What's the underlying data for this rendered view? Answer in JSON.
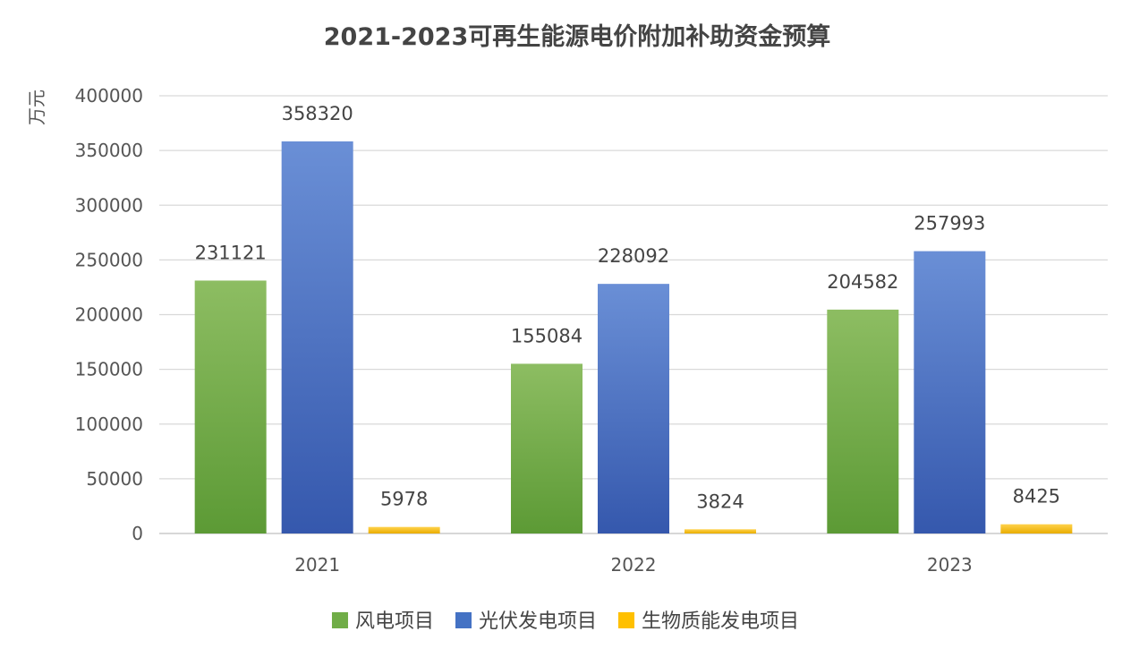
{
  "chart_data": {
    "type": "bar",
    "title": "2021-2023可再生能源电价附加补助资金预算",
    "xlabel": "",
    "ylabel": "万元",
    "categories": [
      "2021",
      "2022",
      "2023"
    ],
    "series": [
      {
        "name": "风电项目",
        "values": [
          231121,
          155084,
          204582
        ],
        "color": "#70ad47"
      },
      {
        "name": "光伏发电项目",
        "values": [
          358320,
          228092,
          257993
        ],
        "color": "#4472c4"
      },
      {
        "name": "生物质能发电项目",
        "values": [
          5978,
          3824,
          8425
        ],
        "color": "#ffc000"
      }
    ],
    "yticks": [
      "0",
      "50000",
      "100000",
      "150000",
      "200000",
      "250000",
      "300000",
      "350000",
      "400000"
    ],
    "ylim": [
      0,
      400000
    ],
    "grid": true,
    "legend_position": "bottom"
  }
}
